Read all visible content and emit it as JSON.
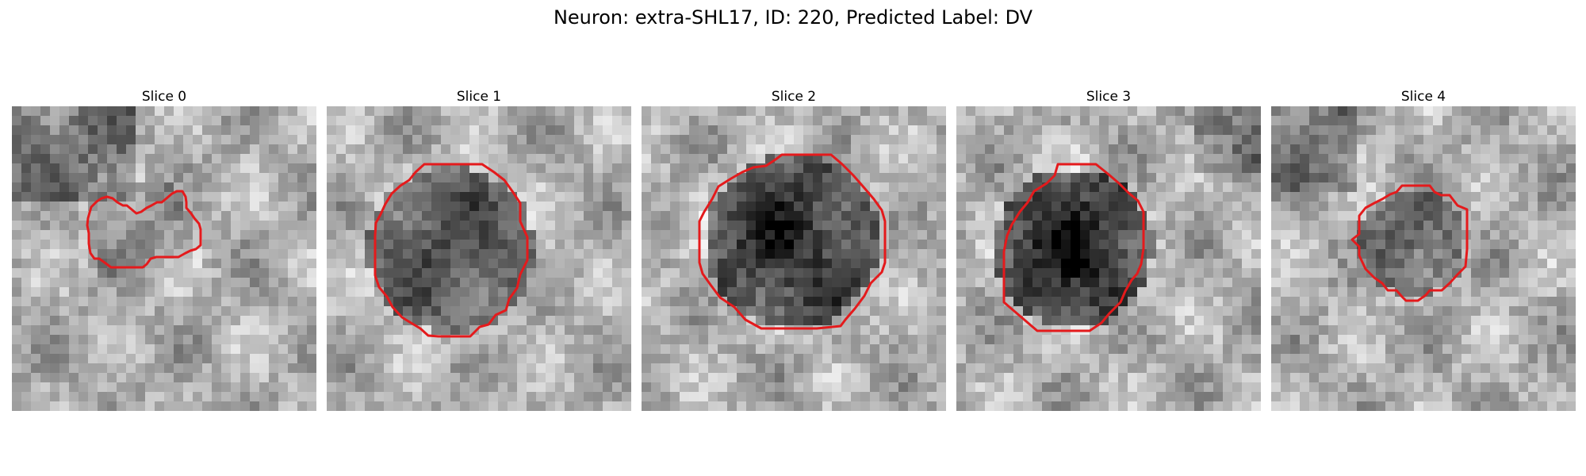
{
  "figure": {
    "title": "Neuron: extra-SHL17, ID: 220, Predicted Label: DV"
  },
  "panels": [
    {
      "title": "Slice 0"
    },
    {
      "title": "Slice 1"
    },
    {
      "title": "Slice 2"
    },
    {
      "title": "Slice 3"
    },
    {
      "title": "Slice 4"
    }
  ],
  "contour_color": "#e41a1c",
  "colormap": "grayscale"
}
